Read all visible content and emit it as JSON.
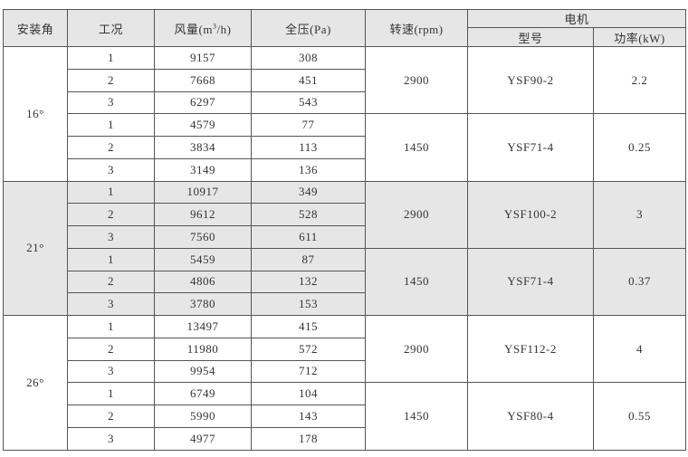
{
  "headers": {
    "angle": "安装角",
    "condition": "工况",
    "flow_prefix": "风量(m",
    "flow_sup": "3",
    "flow_suffix": "/h)",
    "pressure": "全压(Pa)",
    "speed": "转速(rpm)",
    "motor": "电机",
    "model": "型号",
    "power": "功率(kW)"
  },
  "groups": [
    {
      "angle": "16°",
      "shaded": false,
      "speeds": [
        {
          "rpm": "2900",
          "model": "YSF90-2",
          "power": "2.2",
          "rows": [
            [
              "1",
              "9157",
              "308"
            ],
            [
              "2",
              "7668",
              "451"
            ],
            [
              "3",
              "6297",
              "543"
            ]
          ]
        },
        {
          "rpm": "1450",
          "model": "YSF71-4",
          "power": "0.25",
          "rows": [
            [
              "1",
              "4579",
              "77"
            ],
            [
              "2",
              "3834",
              "113"
            ],
            [
              "3",
              "3149",
              "136"
            ]
          ]
        }
      ]
    },
    {
      "angle": "21°",
      "shaded": true,
      "speeds": [
        {
          "rpm": "2900",
          "model": "YSF100-2",
          "power": "3",
          "rows": [
            [
              "1",
              "10917",
              "349"
            ],
            [
              "2",
              "9612",
              "528"
            ],
            [
              "3",
              "7560",
              "611"
            ]
          ]
        },
        {
          "rpm": "1450",
          "model": "YSF71-4",
          "power": "0.37",
          "rows": [
            [
              "1",
              "5459",
              "87"
            ],
            [
              "2",
              "4806",
              "132"
            ],
            [
              "3",
              "3780",
              "153"
            ]
          ]
        }
      ]
    },
    {
      "angle": "26°",
      "shaded": false,
      "speeds": [
        {
          "rpm": "2900",
          "model": "YSF112-2",
          "power": "4",
          "rows": [
            [
              "1",
              "13497",
              "415"
            ],
            [
              "2",
              "11980",
              "572"
            ],
            [
              "3",
              "9954",
              "712"
            ]
          ]
        },
        {
          "rpm": "1450",
          "model": "YSF80-4",
          "power": "0.55",
          "rows": [
            [
              "1",
              "6749",
              "104"
            ],
            [
              "2",
              "5990",
              "143"
            ],
            [
              "3",
              "4977",
              "178"
            ]
          ]
        }
      ]
    }
  ]
}
